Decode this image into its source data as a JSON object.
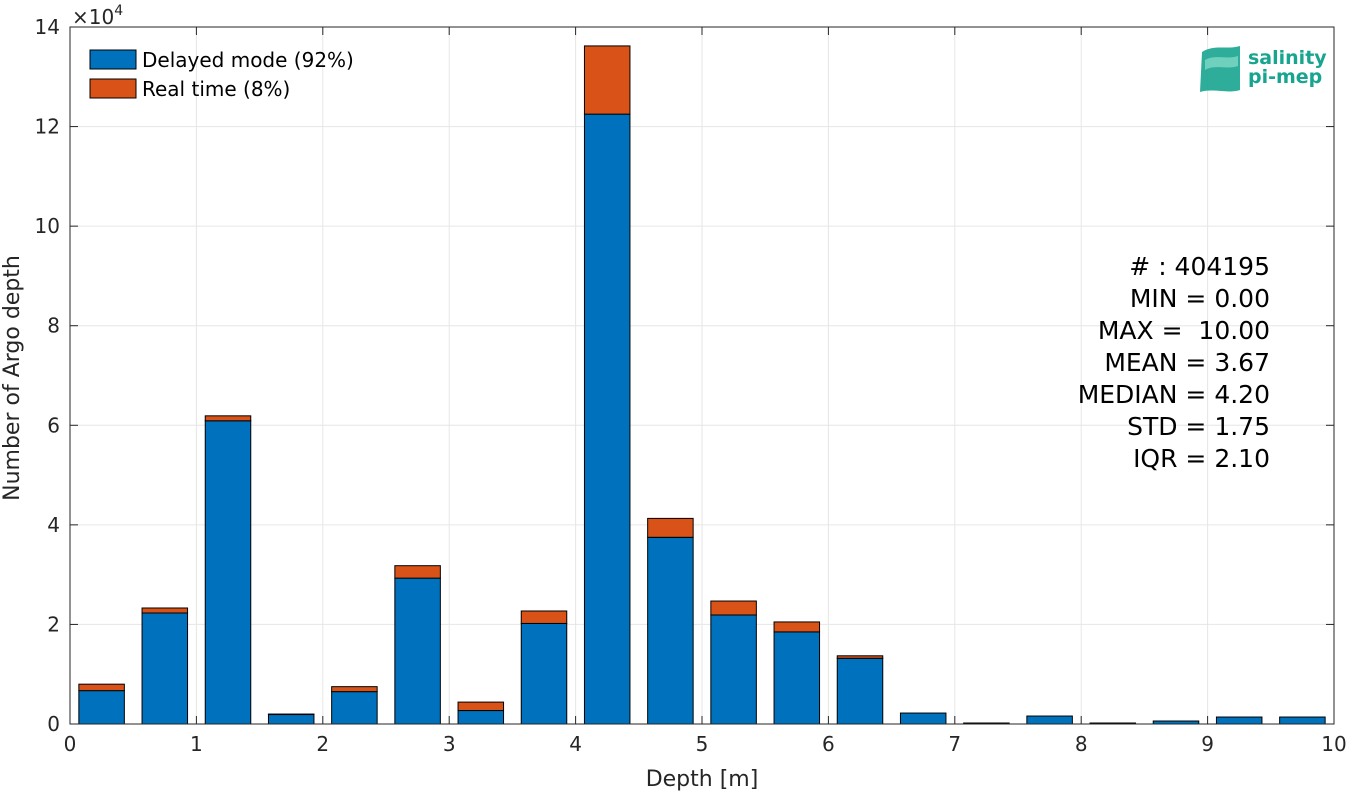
{
  "chart_data": {
    "type": "bar",
    "stacked": true,
    "xlabel": "Depth [m]",
    "ylabel": "Number of Argo depth",
    "y_multiplier": "×10",
    "y_exponent": "4",
    "xlim": [
      0,
      10
    ],
    "ylim": [
      0,
      14
    ],
    "xticks": [
      0,
      1,
      2,
      3,
      4,
      5,
      6,
      7,
      8,
      9,
      10
    ],
    "yticks": [
      0,
      2,
      4,
      6,
      8,
      10,
      12,
      14
    ],
    "grid": true,
    "legend_position": "top-left",
    "bin_centers": [
      0.25,
      0.75,
      1.25,
      1.75,
      2.25,
      2.75,
      3.25,
      3.75,
      4.25,
      4.75,
      5.25,
      5.75,
      6.25,
      6.75,
      7.25,
      7.75,
      8.25,
      8.75,
      9.25,
      9.75
    ],
    "bin_width": 0.36,
    "series": [
      {
        "name": "Delayed mode (92%)",
        "color": "#0072bd",
        "values": [
          0.67,
          2.23,
          6.09,
          0.19,
          0.65,
          2.93,
          0.27,
          2.02,
          12.25,
          3.75,
          2.19,
          1.85,
          1.32,
          0.22,
          0.02,
          0.16,
          0.02,
          0.06,
          0.14,
          0.14
        ]
      },
      {
        "name": "Real time (8%)",
        "color": "#d95319",
        "values": [
          0.13,
          0.1,
          0.1,
          0.01,
          0.1,
          0.25,
          0.17,
          0.25,
          1.37,
          0.38,
          0.28,
          0.2,
          0.05,
          0.0,
          0.0,
          0.0,
          0.0,
          0.0,
          0.0,
          0.0
        ]
      }
    ],
    "stats": [
      "# : 404195",
      "MIN = 0.00",
      "MAX =  10.00",
      "MEAN = 3.67",
      "MEDIAN = 4.20",
      "STD = 1.75",
      "IQR = 2.10"
    ]
  },
  "logo": {
    "line1": "salinity",
    "line2": "pi-mep",
    "color": "#17a58f"
  }
}
